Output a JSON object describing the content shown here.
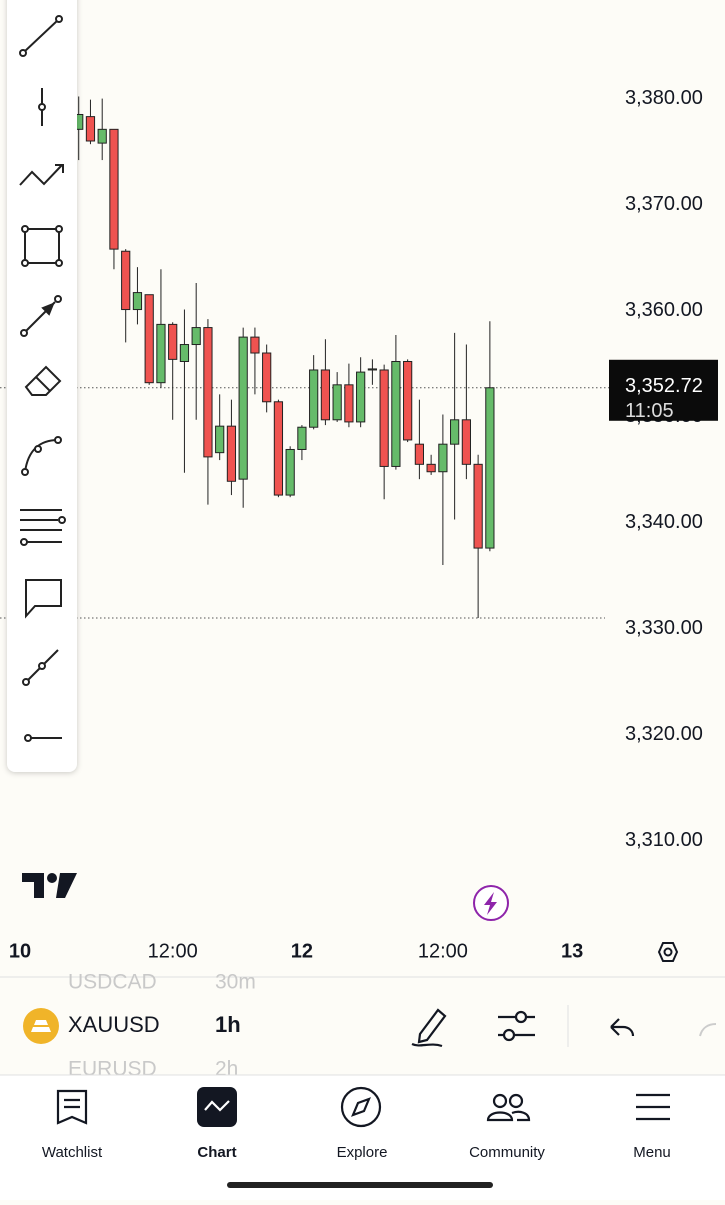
{
  "chart_data": {
    "type": "candlestick",
    "open": [
      3377.1,
      3378.3,
      3375.8,
      3377.1,
      3365.6,
      3360.1,
      3361.5,
      3353.2,
      3358.7,
      3355.2,
      3356.8,
      3358.4,
      3346.6,
      3349.1,
      3344.1,
      3357.5,
      3356.0,
      3351.4,
      3342.6,
      3346.9,
      3349.0,
      3354.4,
      3349.7,
      3353.0,
      3349.5,
      3354.4,
      3354.4,
      3345.3,
      3355.2,
      3347.4,
      3345.5,
      3344.8,
      3347.4,
      3349.7,
      3345.5,
      3337.6
    ],
    "high": [
      3380.2,
      3379.9,
      3380.0,
      3377.1,
      3365.8,
      3364.1,
      3361.5,
      3363.9,
      3358.9,
      3360.1,
      3362.6,
      3359.2,
      3352.1,
      3351.6,
      3358.4,
      3358.4,
      3356.8,
      3351.6,
      3347.2,
      3349.2,
      3355.8,
      3357.3,
      3354.2,
      3355.0,
      3355.6,
      3355.4,
      3354.9,
      3357.7,
      3355.4,
      3351.6,
      3346.4,
      3350.2,
      3357.9,
      3356.8,
      3346.4,
      3359.0
    ],
    "low": [
      3374.2,
      3375.7,
      3374.2,
      3363.9,
      3357.0,
      3358.7,
      3353.0,
      3352.7,
      3349.7,
      3344.7,
      3349.7,
      3341.7,
      3345.9,
      3342.6,
      3341.4,
      3352.1,
      3350.4,
      3342.4,
      3342.4,
      3345.9,
      3348.8,
      3349.2,
      3349.5,
      3349.0,
      3349.0,
      3353.0,
      3342.2,
      3345.0,
      3347.6,
      3344.1,
      3344.5,
      3336.0,
      3340.3,
      3344.1,
      3331.0,
      3337.3
    ],
    "close": [
      3378.5,
      3376.0,
      3377.1,
      3365.8,
      3360.1,
      3361.7,
      3353.2,
      3358.7,
      3355.4,
      3356.8,
      3358.4,
      3346.2,
      3349.1,
      3343.9,
      3357.5,
      3356.0,
      3351.4,
      3342.6,
      3346.9,
      3349.0,
      3354.4,
      3349.7,
      3353.0,
      3349.5,
      3354.2,
      3354.5,
      3345.3,
      3355.2,
      3347.8,
      3345.5,
      3344.8,
      3347.4,
      3349.7,
      3345.5,
      3337.6,
      3352.72
    ],
    "up_color": "#66bb6a",
    "down_color": "#ef5350",
    "xlim": [
      -6.7,
      44.8
    ],
    "xticks": [
      {
        "value": -5,
        "label": "10"
      },
      {
        "value": 8,
        "label": "12:00"
      },
      {
        "value": 19,
        "label": "12"
      },
      {
        "value": 31,
        "label": "12:00"
      },
      {
        "value": 42,
        "label": "13"
      }
    ],
    "ylim": [
      3301.1,
      3389.3
    ],
    "yticks": [
      {
        "value": 3310,
        "label": "3,310.00"
      },
      {
        "value": 3320,
        "label": "3,320.00"
      },
      {
        "value": 3330,
        "label": "3,330.00"
      },
      {
        "value": 3340,
        "label": "3,340.00"
      },
      {
        "value": 3350,
        "label": "3,350.00"
      },
      {
        "value": 3360,
        "label": "3,360.00"
      },
      {
        "value": 3370,
        "label": "3,370.00"
      },
      {
        "value": 3380,
        "label": "3,380.00"
      }
    ],
    "last_price": {
      "value": 3352.72,
      "label": "3,352.72"
    },
    "countdown": "11:05"
  },
  "symbol_bar": {
    "prev_symbol": "USDCAD",
    "prev_interval": "30m",
    "symbol": "XAUUSD",
    "interval": "1h",
    "next_symbol": "EURUSD",
    "next_interval": "2h"
  },
  "nav": [
    "Watchlist",
    "Chart",
    "Explore",
    "Community",
    "Menu"
  ]
}
